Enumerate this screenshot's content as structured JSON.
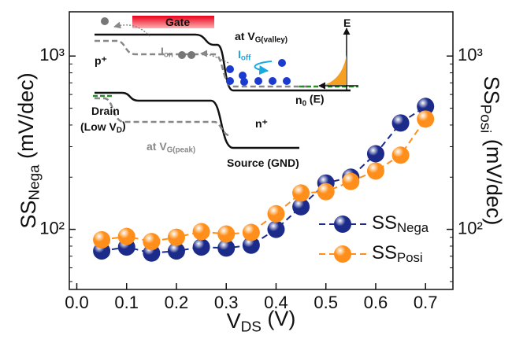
{
  "chart_data": {
    "type": "line",
    "xlabel": [
      "V",
      "DS",
      " (V)"
    ],
    "ylabel": [
      "SS",
      "Nega",
      " (mV/dec)"
    ],
    "y2label": [
      "SS",
      "Posi",
      " (mV/dec)"
    ],
    "x": [
      0.05,
      0.1,
      0.15,
      0.2,
      0.25,
      0.3,
      0.35,
      0.4,
      0.45,
      0.5,
      0.55,
      0.6,
      0.65,
      0.7
    ],
    "series": [
      {
        "name": [
          "SS",
          "Nega"
        ],
        "color": "#1c2a8a",
        "values": [
          75,
          79,
          73,
          75,
          79,
          78,
          81,
          100,
          135,
          185,
          200,
          273,
          411,
          512
        ]
      },
      {
        "name": [
          "SS",
          "Posi"
        ],
        "color": "#ff8f1a",
        "values": [
          87,
          91,
          85,
          90,
          97,
          94,
          96,
          123,
          162,
          165,
          189,
          217,
          268,
          433
        ]
      }
    ],
    "xlim": [
      -0.015,
      0.755
    ],
    "xticks": [
      {
        "value": 0,
        "label": "0.0"
      },
      0.1,
      0.2,
      0.3,
      0.4,
      0.5,
      0.6,
      0.7
    ],
    "ylim": [
      45,
      1800
    ],
    "log_y": true,
    "yticks": [
      {
        "value": 100,
        "label": "10²"
      },
      {
        "value": 1000,
        "label": "10³"
      }
    ],
    "yminorticks": [
      50,
      60,
      70,
      80,
      90,
      200,
      300,
      400,
      500,
      600,
      700,
      800,
      900
    ],
    "y2lim": [
      45,
      1800
    ],
    "y2ticks": [
      {
        "value": 100,
        "label": "10²"
      },
      {
        "value": 1000,
        "label": "10³"
      }
    ],
    "legend": "lower right",
    "annotations": [
      {
        "parts": [
          "Gate"
        ]
      },
      {
        "parts": [
          "p⁺"
        ]
      },
      {
        "parts": [
          "at V",
          "G(valley)"
        ]
      },
      {
        "parts": [
          "I",
          "on"
        ]
      },
      {
        "parts": [
          "I",
          "off"
        ]
      },
      {
        "parts": [
          "E"
        ]
      },
      {
        "parts": [
          "n",
          "0",
          " (E)"
        ]
      },
      {
        "parts": [
          "Drain"
        ]
      },
      {
        "parts": [
          "(Low V",
          "D",
          ")"
        ]
      },
      {
        "parts": [
          "n⁺"
        ]
      },
      {
        "parts": [
          "at V",
          "G(peak)"
        ]
      },
      {
        "parts": [
          "Source (GND)"
        ]
      }
    ]
  }
}
